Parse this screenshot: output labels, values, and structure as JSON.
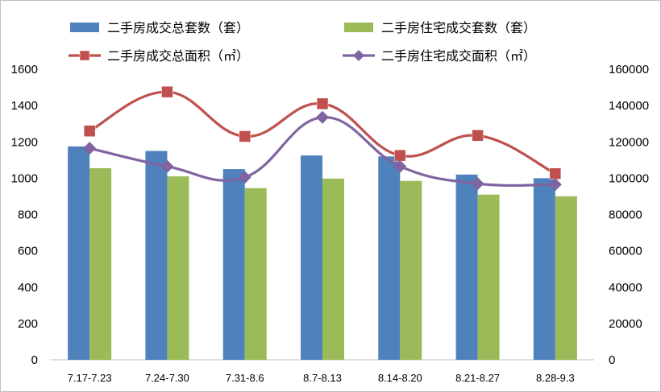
{
  "chart_data": {
    "type": "bar",
    "categories": [
      "7.17-7.23",
      "7.24-7.30",
      "7.31-8.6",
      "8.7-8.13",
      "8.14-8.20",
      "8.21-8.27",
      "8.28-9.3"
    ],
    "series": [
      {
        "name": "二手房成交总套数（套）",
        "type": "bar",
        "axis": "left",
        "color": "#4f81bd",
        "values": [
          1175,
          1150,
          1050,
          1125,
          1120,
          1020,
          1000
        ]
      },
      {
        "name": "二手房住宅成交套数（套）",
        "type": "bar",
        "axis": "left",
        "color": "#9bbb59",
        "values": [
          1055,
          1010,
          945,
          998,
          985,
          910,
          900
        ]
      },
      {
        "name": "二手房成交总面积（㎡）",
        "type": "line",
        "axis": "right",
        "color": "#c0504d",
        "marker": "square",
        "values": [
          126000,
          147500,
          123000,
          141000,
          112500,
          123500,
          102500
        ]
      },
      {
        "name": "二手房住宅成交面积（㎡）",
        "type": "line",
        "axis": "right",
        "color": "#8064a2",
        "marker": "diamond",
        "values": [
          116500,
          106500,
          100500,
          133500,
          106500,
          97000,
          96500
        ]
      }
    ],
    "ylim_left": [
      0,
      1600
    ],
    "yticks_left": [
      "0",
      "200",
      "400",
      "600",
      "800",
      "1000",
      "1200",
      "1400",
      "1600"
    ],
    "ylim_right": [
      0,
      160000
    ],
    "yticks_right": [
      "0",
      "20000",
      "40000",
      "60000",
      "80000",
      "100000",
      "120000",
      "140000",
      "160000"
    ],
    "grid": false,
    "legend": "top"
  }
}
